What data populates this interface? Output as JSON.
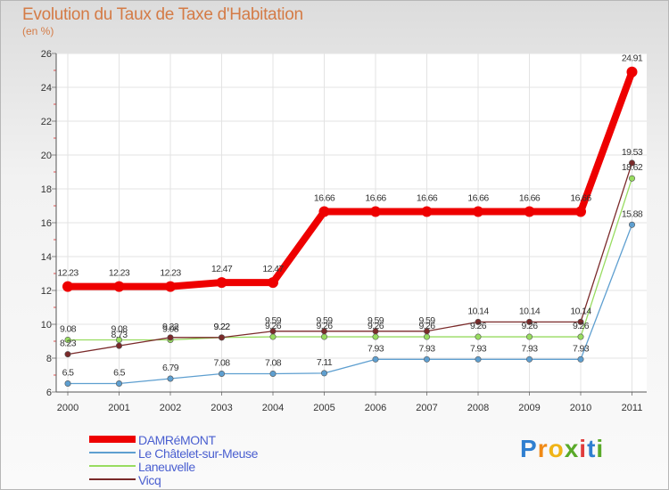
{
  "chart_data": {
    "type": "line",
    "title": "Evolution du Taux de Taxe d'Habitation",
    "ylabel": "(en %)",
    "xlabel": "",
    "categories": [
      "2000",
      "2001",
      "2002",
      "2003",
      "2004",
      "2005",
      "2006",
      "2007",
      "2008",
      "2009",
      "2010",
      "2011"
    ],
    "ylim": [
      6,
      26
    ],
    "yticks": [
      "6",
      "8",
      "10",
      "12",
      "14",
      "16",
      "18",
      "20",
      "22",
      "24",
      "26"
    ],
    "grid": true,
    "legend_position": "bottom-left",
    "series": [
      {
        "name": "DAMRéMONT",
        "color": "#ee0000",
        "values": [
          12.23,
          12.23,
          12.23,
          12.47,
          12.47,
          16.66,
          16.66,
          16.66,
          16.66,
          16.66,
          16.66,
          24.91
        ],
        "labels": [
          "12.23",
          "12.23",
          "12.23",
          "12.47",
          "12.47",
          "16.66",
          "16.66",
          "16.66",
          "16.66",
          "16.66",
          "16.66",
          "24.91"
        ]
      },
      {
        "name": "Le Châtelet-sur-Meuse",
        "color": "#5e9fd0",
        "values": [
          6.5,
          6.5,
          6.79,
          7.08,
          7.08,
          7.11,
          7.93,
          7.93,
          7.93,
          7.93,
          7.93,
          15.88
        ],
        "labels": [
          "6.5",
          "6.5",
          "6.79",
          "7.08",
          "7.08",
          "7.11",
          "7.93",
          "7.93",
          "7.93",
          "7.93",
          "7.93",
          "15.88"
        ]
      },
      {
        "name": "Laneuvelle",
        "color": "#98dc60",
        "values": [
          9.08,
          9.08,
          9.08,
          9.22,
          9.26,
          9.26,
          9.26,
          9.26,
          9.26,
          9.26,
          9.26,
          18.62
        ],
        "labels": [
          "9.08",
          "9.08",
          "9.08",
          "9.22",
          "9.26",
          "9.26",
          "9.26",
          "9.26",
          "9.26",
          "9.26",
          "9.26",
          "18.62"
        ]
      },
      {
        "name": "Vicq",
        "color": "#7a2a2a",
        "values": [
          8.23,
          8.73,
          9.22,
          9.22,
          9.59,
          9.59,
          9.59,
          9.59,
          10.14,
          10.14,
          10.14,
          19.53
        ],
        "labels": [
          "8.23",
          "8.73",
          "9.22",
          "9.22",
          "9.59",
          "9.59",
          "9.59",
          "9.59",
          "10.14",
          "10.14",
          "10.14",
          "19.53"
        ]
      }
    ]
  },
  "logo": {
    "letters": [
      {
        "ch": "P",
        "color": "#2f7fd0"
      },
      {
        "ch": "r",
        "color": "#f08a16"
      },
      {
        "ch": "o",
        "color": "#f0b416"
      },
      {
        "ch": "x",
        "color": "#5aaa2a"
      },
      {
        "ch": "i",
        "color": "#e03c3c"
      },
      {
        "ch": "t",
        "color": "#2f7fd0"
      },
      {
        "ch": "i",
        "color": "#5aaa2a"
      }
    ]
  }
}
